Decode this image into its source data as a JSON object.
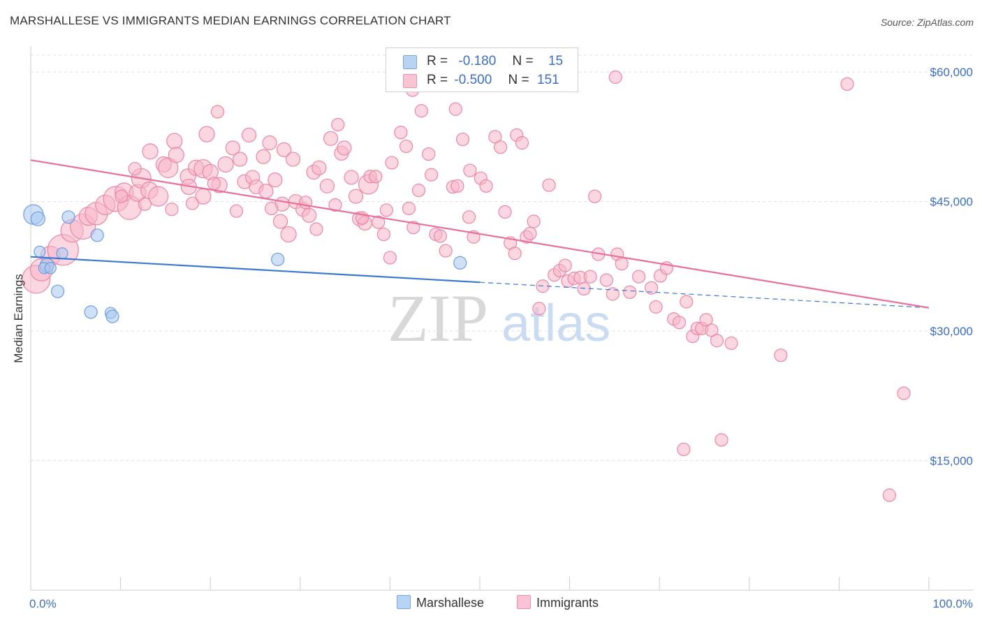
{
  "title": "MARSHALLESE VS IMMIGRANTS MEDIAN EARNINGS CORRELATION CHART",
  "source": "Source: ZipAtlas.com",
  "watermark": {
    "zip": "ZIP",
    "atlas": "atlas"
  },
  "legend": {
    "rows": [
      {
        "r_label": "R =",
        "r_value": "-0.180",
        "n_label": "N =",
        "n_value": "15"
      },
      {
        "r_label": "R =",
        "r_value": "-0.500",
        "n_label": "N =",
        "n_value": "151"
      }
    ]
  },
  "bottom_legend": {
    "marshallese": "Marshallese",
    "immigrants": "Immigrants"
  },
  "chart_data": {
    "type": "scatter",
    "title": "MARSHALLESE VS IMMIGRANTS MEDIAN EARNINGS CORRELATION CHART",
    "xlabel": "",
    "ylabel": "Median Earnings",
    "xlim": [
      0,
      100
    ],
    "ylim": [
      0,
      63000
    ],
    "x_tick_labels": [
      "0.0%",
      "100.0%"
    ],
    "y_ticks": [
      15000,
      30000,
      45000,
      60000
    ],
    "y_tick_labels": [
      "$15,000",
      "$30,000",
      "$45,000",
      "$60,000"
    ],
    "grid": true,
    "legend_position": "top-center",
    "colors": {
      "marshallese_fill": "#aac8f0",
      "marshallese_stroke": "#6b9ee0",
      "marshallese_line": "#3a78d4",
      "immigrants_fill": "#f7b6cb",
      "immigrants_stroke": "#eb86a6",
      "immigrants_line": "#e8709a"
    },
    "series": [
      {
        "name": "Marshallese",
        "trend": {
          "x0": 0,
          "y0": 38600,
          "x1": 100,
          "y1": 32700,
          "solid_until": 50
        },
        "points": [
          [
            0.3,
            43500,
            14
          ],
          [
            0.8,
            43000,
            10
          ],
          [
            4.2,
            43200,
            9
          ],
          [
            1.0,
            39200,
            8
          ],
          [
            1.8,
            37600,
            10
          ],
          [
            1.5,
            37300,
            8
          ],
          [
            2.2,
            37300,
            8
          ],
          [
            3.0,
            34600,
            9
          ],
          [
            7.4,
            41100,
            9
          ],
          [
            6.7,
            32200,
            9
          ],
          [
            8.9,
            32100,
            8
          ],
          [
            9.1,
            31700,
            9
          ],
          [
            27.5,
            38300,
            9
          ],
          [
            47.8,
            37900,
            9
          ],
          [
            3.5,
            39000,
            8
          ]
        ]
      },
      {
        "name": "Immigrants",
        "trend": {
          "x0": 0,
          "y0": 49800,
          "x1": 100,
          "y1": 32700
        },
        "points": [
          [
            0.6,
            36000,
            20
          ],
          [
            1.2,
            37100,
            16
          ],
          [
            2.2,
            38700,
            14
          ],
          [
            3.6,
            39400,
            22
          ],
          [
            4.6,
            41600,
            16
          ],
          [
            5.8,
            42100,
            18
          ],
          [
            6.4,
            43300,
            13
          ],
          [
            7.3,
            43600,
            16
          ],
          [
            8.3,
            44600,
            14
          ],
          [
            9.5,
            45300,
            18
          ],
          [
            10.4,
            46100,
            13
          ],
          [
            11.0,
            44300,
            17
          ],
          [
            11.9,
            46000,
            12
          ],
          [
            12.3,
            47700,
            14
          ],
          [
            13.2,
            46300,
            12
          ],
          [
            14.2,
            45600,
            14
          ],
          [
            13.3,
            50800,
            11
          ],
          [
            14.8,
            49300,
            11
          ],
          [
            15.3,
            48900,
            14
          ],
          [
            16.0,
            52000,
            11
          ],
          [
            16.2,
            50400,
            11
          ],
          [
            17.5,
            47900,
            11
          ],
          [
            17.6,
            46700,
            11
          ],
          [
            18.4,
            48900,
            11
          ],
          [
            19.2,
            48800,
            13
          ],
          [
            19.2,
            45600,
            11
          ],
          [
            19.6,
            52800,
            11
          ],
          [
            20.0,
            48400,
            11
          ],
          [
            21.0,
            46900,
            11
          ],
          [
            21.7,
            49300,
            11
          ],
          [
            22.5,
            51200,
            10
          ],
          [
            23.3,
            49900,
            10
          ],
          [
            23.8,
            47300,
            10
          ],
          [
            24.3,
            52700,
            10
          ],
          [
            24.7,
            47800,
            10
          ],
          [
            25.1,
            46700,
            10
          ],
          [
            25.9,
            50200,
            10
          ],
          [
            26.2,
            46200,
            10
          ],
          [
            26.6,
            51800,
            10
          ],
          [
            27.2,
            47500,
            10
          ],
          [
            28.0,
            44700,
            10
          ],
          [
            28.2,
            51000,
            10
          ],
          [
            29.2,
            49900,
            10
          ],
          [
            27.8,
            42700,
            10
          ],
          [
            28.7,
            41200,
            11
          ],
          [
            29.5,
            45000,
            10
          ],
          [
            30.3,
            44100,
            10
          ],
          [
            31.0,
            43400,
            10
          ],
          [
            31.5,
            48400,
            10
          ],
          [
            32.1,
            48900,
            10
          ],
          [
            33.0,
            46800,
            10
          ],
          [
            33.4,
            52300,
            10
          ],
          [
            34.6,
            50600,
            10
          ],
          [
            34.9,
            51200,
            10
          ],
          [
            35.7,
            47800,
            10
          ],
          [
            36.2,
            45600,
            10
          ],
          [
            36.6,
            43000,
            10
          ],
          [
            37.2,
            42500,
            10
          ],
          [
            37.6,
            47000,
            14
          ],
          [
            37.8,
            47900,
            9
          ],
          [
            38.7,
            42600,
            9
          ],
          [
            39.6,
            44000,
            9
          ],
          [
            39.3,
            41200,
            9
          ],
          [
            40.2,
            49500,
            9
          ],
          [
            41.2,
            53000,
            9
          ],
          [
            41.8,
            51400,
            9
          ],
          [
            42.1,
            44200,
            9
          ],
          [
            42.6,
            42000,
            9
          ],
          [
            43.2,
            46300,
            9
          ],
          [
            43.5,
            55500,
            9
          ],
          [
            44.3,
            50500,
            9
          ],
          [
            44.6,
            48100,
            9
          ],
          [
            45.1,
            41200,
            9
          ],
          [
            45.6,
            41000,
            9
          ],
          [
            46.2,
            39300,
            9
          ],
          [
            47.0,
            46700,
            9
          ],
          [
            47.5,
            46800,
            9
          ],
          [
            48.1,
            52200,
            9
          ],
          [
            48.9,
            48600,
            9
          ],
          [
            49.3,
            40900,
            9
          ],
          [
            50.1,
            47700,
            9
          ],
          [
            50.7,
            46800,
            9
          ],
          [
            51.7,
            52500,
            9
          ],
          [
            52.3,
            51300,
            9
          ],
          [
            52.8,
            43800,
            9
          ],
          [
            53.4,
            40200,
            9
          ],
          [
            54.1,
            52700,
            9
          ],
          [
            54.7,
            51800,
            9
          ],
          [
            55.2,
            40900,
            9
          ],
          [
            55.6,
            41300,
            9
          ],
          [
            56.0,
            42700,
            9
          ],
          [
            56.6,
            32600,
            9
          ],
          [
            57.0,
            35200,
            9
          ],
          [
            57.7,
            46900,
            9
          ],
          [
            58.3,
            36500,
            9
          ],
          [
            58.9,
            37000,
            9
          ],
          [
            59.5,
            37600,
            9
          ],
          [
            59.8,
            35800,
            9
          ],
          [
            60.5,
            36100,
            9
          ],
          [
            61.2,
            36200,
            9
          ],
          [
            61.6,
            34900,
            9
          ],
          [
            62.3,
            36300,
            9
          ],
          [
            62.8,
            45600,
            9
          ],
          [
            63.2,
            38900,
            9
          ],
          [
            64.1,
            35900,
            9
          ],
          [
            64.8,
            34300,
            9
          ],
          [
            65.3,
            38900,
            9
          ],
          [
            65.8,
            37800,
            9
          ],
          [
            66.7,
            34500,
            9
          ],
          [
            67.7,
            36300,
            9
          ],
          [
            69.1,
            35000,
            9
          ],
          [
            69.6,
            32800,
            9
          ],
          [
            70.1,
            36400,
            9
          ],
          [
            70.8,
            37300,
            9
          ],
          [
            71.6,
            31400,
            9
          ],
          [
            72.2,
            31000,
            9
          ],
          [
            73.0,
            33400,
            9
          ],
          [
            73.7,
            29400,
            9
          ],
          [
            74.2,
            30300,
            9
          ],
          [
            74.7,
            30300,
            9
          ],
          [
            75.2,
            31300,
            9
          ],
          [
            75.8,
            30100,
            9
          ],
          [
            76.4,
            28900,
            9
          ],
          [
            78.0,
            28600,
            9
          ],
          [
            83.5,
            27200,
            9
          ],
          [
            72.7,
            16300,
            9
          ],
          [
            76.9,
            17400,
            9
          ],
          [
            97.2,
            22800,
            9
          ],
          [
            95.6,
            11000,
            9
          ],
          [
            90.9,
            58600,
            9
          ],
          [
            65.1,
            59400,
            9
          ],
          [
            42.5,
            57900,
            9
          ],
          [
            47.3,
            55700,
            9
          ],
          [
            20.8,
            55400,
            9
          ],
          [
            34.2,
            53900,
            9
          ],
          [
            11.6,
            48800,
            9
          ],
          [
            15.7,
            44100,
            9
          ],
          [
            22.9,
            43900,
            9
          ],
          [
            26.8,
            44200,
            9
          ],
          [
            31.8,
            41800,
            9
          ],
          [
            33.9,
            44600,
            9
          ],
          [
            36.9,
            43100,
            9
          ],
          [
            48.8,
            43200,
            9
          ],
          [
            53.9,
            39000,
            9
          ],
          [
            10.1,
            45600,
            9
          ],
          [
            12.7,
            44700,
            9
          ],
          [
            18.0,
            44800,
            9
          ],
          [
            30.6,
            44900,
            9
          ],
          [
            38.4,
            47900,
            9
          ],
          [
            20.4,
            47100,
            9
          ],
          [
            40.0,
            38500,
            9
          ]
        ]
      }
    ]
  }
}
